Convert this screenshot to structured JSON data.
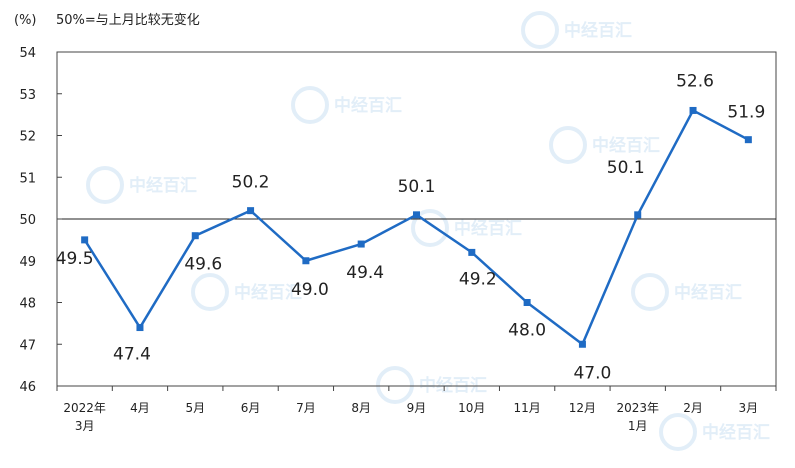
{
  "chart_data": {
    "type": "line",
    "unit_label": "(%)",
    "note": "50%=与上月比较无变化",
    "watermark": "中经百汇",
    "categories": [
      "2022年\n3月",
      "4月",
      "5月",
      "6月",
      "7月",
      "8月",
      "9月",
      "10月",
      "11月",
      "12月",
      "2023年\n1月",
      "2月",
      "3月"
    ],
    "series": [
      {
        "values": [
          49.5,
          47.4,
          49.6,
          50.2,
          49.0,
          49.4,
          50.1,
          49.2,
          48.0,
          47.0,
          50.1,
          52.6,
          51.9
        ],
        "labels": [
          "49.5",
          "47.4",
          "49.6",
          "50.2",
          "49.0",
          "49.4",
          "50.1",
          "49.2",
          "48.0",
          "47.0",
          "50.1",
          "52.6",
          "51.9"
        ],
        "color": "#1f6bc4"
      }
    ],
    "ylim": [
      46,
      54
    ],
    "yticks": [
      "46",
      "47",
      "48",
      "49",
      "50",
      "51",
      "52",
      "53",
      "54"
    ],
    "reference_line": 50,
    "grid": false,
    "legend": "none"
  }
}
